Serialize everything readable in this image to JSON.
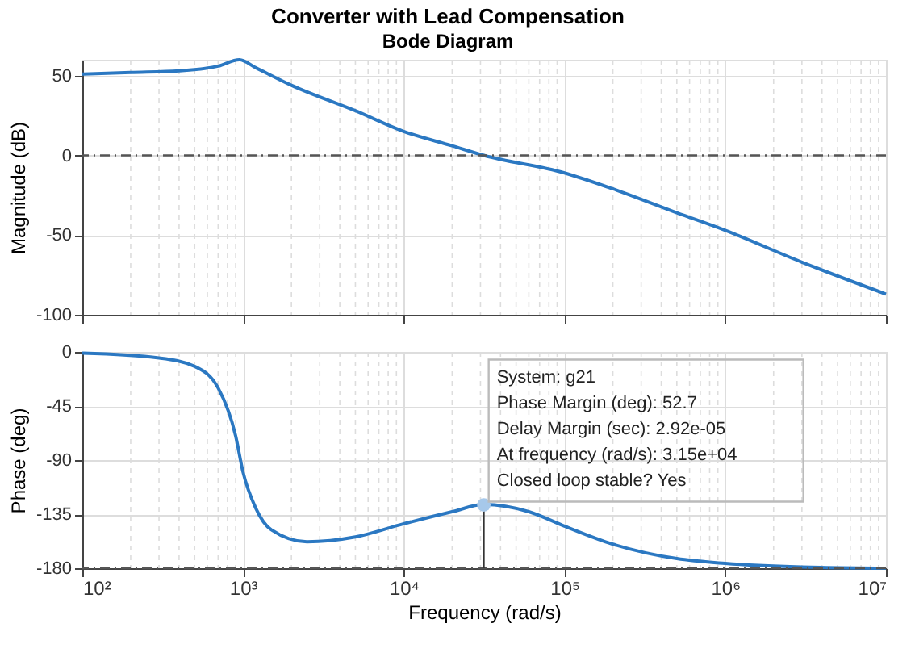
{
  "chart_data": [
    {
      "type": "line",
      "title": "Converter with Lead Compensation",
      "subtitle": "Bode Diagram",
      "ylabel": "Magnitude (dB)",
      "x": [
        100,
        200,
        400,
        700,
        950,
        1200,
        2000,
        5000,
        10000,
        20000,
        31500,
        100000,
        200000,
        500000,
        1000000,
        3000000,
        10000000
      ],
      "series": [
        {
          "color": "#2b78c2",
          "values": [
            51,
            52,
            53,
            56,
            60,
            55,
            44,
            28,
            15,
            6,
            0,
            -11,
            -21,
            -36,
            -47,
            -67,
            -87
          ]
        }
      ],
      "log": "x",
      "xlim": [
        100,
        10000000
      ],
      "xticks": [
        {
          "value": 100,
          "label": null
        },
        {
          "value": 1000,
          "label": null
        },
        {
          "value": 10000,
          "label": null
        },
        {
          "value": 100000,
          "label": null
        },
        {
          "value": 1000000,
          "label": null
        },
        {
          "value": 10000000,
          "label": null
        }
      ],
      "ylim": [
        -100,
        60
      ],
      "yticks": [
        -100,
        -50,
        0,
        50
      ],
      "grid": true,
      "tick_labels": "y",
      "ref_lines": [
        {
          "axis": "y",
          "value": 0,
          "color": "#555555",
          "line_style": "dashdot"
        }
      ]
    },
    {
      "type": "line",
      "xlabel": "Frequency  (rad/s)",
      "ylabel": "Phase (deg)",
      "x": [
        100,
        300,
        500,
        700,
        900,
        1000,
        1200,
        1500,
        2500,
        5000,
        10000,
        20000,
        31500,
        60000,
        100000,
        200000,
        500000,
        1000000,
        3000000,
        10000000
      ],
      "series": [
        {
          "color": "#2b78c2",
          "values": [
            -1,
            -5,
            -12,
            -30,
            -70,
            -100,
            -130,
            -148,
            -158,
            -154,
            -143,
            -133,
            -127,
            -133,
            -145,
            -160,
            -172,
            -176,
            -179,
            -180
          ]
        }
      ],
      "log": "x",
      "xlim": [
        100,
        10000000
      ],
      "xticks": [
        {
          "value": 100,
          "label": "10²"
        },
        {
          "value": 1000,
          "label": "10³"
        },
        {
          "value": 10000,
          "label": "10⁴"
        },
        {
          "value": 100000,
          "label": "10⁵"
        },
        {
          "value": 1000000,
          "label": "10⁶"
        },
        {
          "value": 10000000,
          "label": "10⁷"
        }
      ],
      "ylim": [
        -180,
        0
      ],
      "yticks": [
        -180,
        -135,
        -90,
        -45,
        0
      ],
      "grid": true,
      "ref_lines": [
        {
          "axis": "y",
          "value": -180,
          "color": "#555555",
          "line_style": "dashdot"
        }
      ],
      "annotations": [
        {
          "text": "System: g21\nPhase Margin (deg): 52.7\nDelay Margin (sec): 2.92e-05\nAt frequency (rad/s): 3.15e+04\nClosed loop stable? Yes",
          "x": 31500,
          "y": -127.3
        }
      ]
    }
  ]
}
